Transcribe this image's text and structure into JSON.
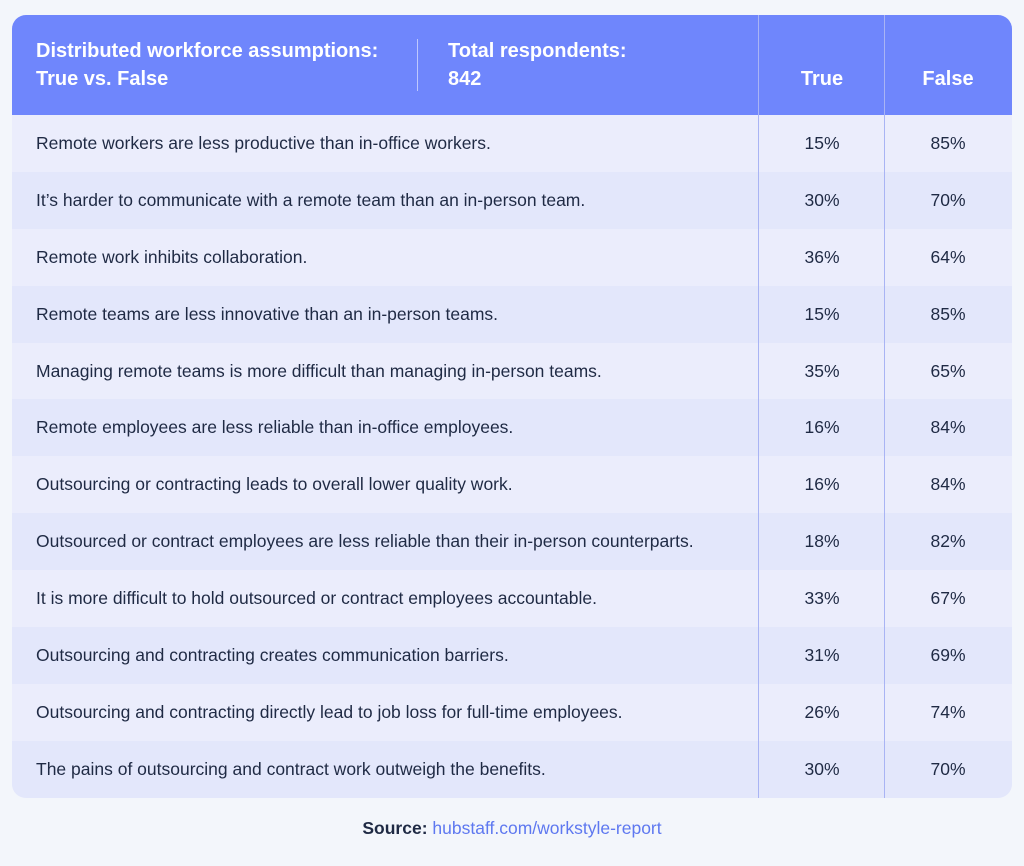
{
  "chart_data": {
    "type": "table",
    "title": "Distributed workforce assumptions: True vs. False",
    "respondents_label": "Total respondents:",
    "respondents_value": "842",
    "columns": [
      "True",
      "False"
    ],
    "rows": [
      {
        "statement": "Remote workers are less productive than in-office workers.",
        "true": "15%",
        "false": "85%"
      },
      {
        "statement": "It’s harder to communicate with a remote team than an in-person team.",
        "true": "30%",
        "false": "70%"
      },
      {
        "statement": "Remote work inhibits collaboration.",
        "true": "36%",
        "false": "64%"
      },
      {
        "statement": "Remote teams are less innovative than an in-person teams.",
        "true": "15%",
        "false": "85%"
      },
      {
        "statement": "Managing remote teams is more difficult than managing in-person teams.",
        "true": "35%",
        "false": "65%"
      },
      {
        "statement": "Remote employees are less reliable than in-office employees.",
        "true": "16%",
        "false": "84%"
      },
      {
        "statement": "Outsourcing or contracting leads to overall lower quality work.",
        "true": "16%",
        "false": "84%"
      },
      {
        "statement": "Outsourced or contract employees are less reliable than their in-person counterparts.",
        "true": "18%",
        "false": "82%"
      },
      {
        "statement": "It is more difficult to hold outsourced or contract employees accountable.",
        "true": "33%",
        "false": "67%"
      },
      {
        "statement": "Outsourcing and contracting creates communication barriers.",
        "true": "31%",
        "false": "69%"
      },
      {
        "statement": "Outsourcing and contracting directly lead to job loss for full-time employees.",
        "true": "26%",
        "false": "74%"
      },
      {
        "statement": "The pains of outsourcing and contract work outweigh the benefits.",
        "true": "30%",
        "false": "70%"
      }
    ]
  },
  "source": {
    "label": "Source:",
    "link": "hubstaff.com/workstyle-report"
  },
  "colors": {
    "header": "#6f86fc",
    "row_light": "#ebedfc",
    "row_dark": "#e3e7fb",
    "link": "#5e78f0"
  }
}
